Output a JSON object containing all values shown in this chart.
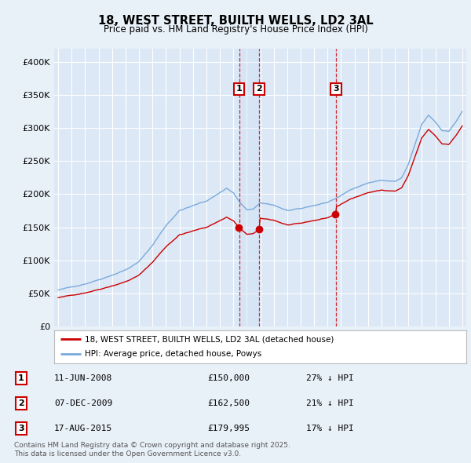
{
  "title": "18, WEST STREET, BUILTH WELLS, LD2 3AL",
  "subtitle": "Price paid vs. HM Land Registry's House Price Index (HPI)",
  "bg_color": "#e8f0f8",
  "plot_bg_color": "#dce8f5",
  "grid_color": "#ffffff",
  "ylim": [
    0,
    420000
  ],
  "yticks": [
    0,
    50000,
    100000,
    150000,
    200000,
    250000,
    300000,
    350000,
    400000
  ],
  "ytick_labels": [
    "£0",
    "£50K",
    "£100K",
    "£150K",
    "£200K",
    "£250K",
    "£300K",
    "£350K",
    "£400K"
  ],
  "sale_color": "#cc0000",
  "hpi_color": "#7aaadd",
  "shade_color": "#cce0f5",
  "legend_label_sale": "18, WEST STREET, BUILTH WELLS, LD2 3AL (detached house)",
  "legend_label_hpi": "HPI: Average price, detached house, Powys",
  "sales": [
    {
      "date_num": 2008.44,
      "price": 150000,
      "label": "1"
    },
    {
      "date_num": 2009.92,
      "price": 162500,
      "label": "2"
    },
    {
      "date_num": 2015.62,
      "price": 179995,
      "label": "3"
    }
  ],
  "sale_annotations": [
    {
      "num": "1",
      "date": "11-JUN-2008",
      "price": "£150,000",
      "pct": "27% ↓ HPI"
    },
    {
      "num": "2",
      "date": "07-DEC-2009",
      "price": "£162,500",
      "pct": "21% ↓ HPI"
    },
    {
      "num": "3",
      "date": "17-AUG-2015",
      "price": "£179,995",
      "pct": "17% ↓ HPI"
    }
  ],
  "footnote": "Contains HM Land Registry data © Crown copyright and database right 2025.\nThis data is licensed under the Open Government Licence v3.0."
}
